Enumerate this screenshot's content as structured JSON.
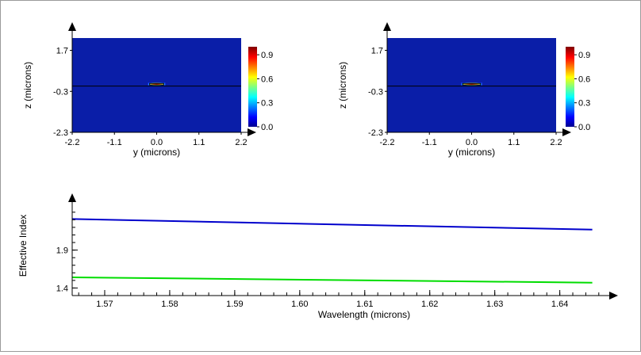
{
  "chart_data": [
    {
      "type": "heatmap",
      "xlabel": "y (microns)",
      "ylabel": "z (microns)",
      "xlim": [
        -2.2,
        2.2
      ],
      "ylim": [
        -2.3,
        2.3
      ],
      "x_ticks": [
        "-2.2",
        "-1.1",
        "0.0",
        "1.1",
        "2.2"
      ],
      "y_ticks": [
        "-2.3",
        "-0.3",
        "1.7"
      ],
      "colorbar_ticks": [
        "0.0",
        "0.3",
        "0.6",
        "0.9"
      ],
      "colorbar_range": [
        0,
        1
      ],
      "hotspot": {
        "y_center": 0.0,
        "z_center": 0.05,
        "width": 0.45,
        "height": 0.15
      },
      "grid": false
    },
    {
      "type": "heatmap",
      "xlabel": "y (microns)",
      "ylabel": "z (microns)",
      "xlim": [
        -2.2,
        2.2
      ],
      "ylim": [
        -2.3,
        2.3
      ],
      "x_ticks": [
        "-2.2",
        "-1.1",
        "0.0",
        "1.1",
        "2.2"
      ],
      "y_ticks": [
        "-2.3",
        "-0.3",
        "1.7"
      ],
      "colorbar_ticks": [
        "0.0",
        "0.3",
        "0.6",
        "0.9"
      ],
      "colorbar_range": [
        0,
        1
      ],
      "hotspot": {
        "y_center": 0.0,
        "z_center": 0.05,
        "width": 0.55,
        "height": 0.15
      },
      "grid": false
    },
    {
      "type": "line",
      "xlabel": "Wavelength (microns)",
      "ylabel": "Effective Index",
      "xlim": [
        1.565,
        1.647
      ],
      "ylim": [
        1.3,
        2.45
      ],
      "x_ticks": [
        "1.57",
        "1.58",
        "1.59",
        "1.60",
        "1.61",
        "1.62",
        "1.63",
        "1.64"
      ],
      "y_ticks": [
        "1.4",
        "1.9"
      ],
      "series": [
        {
          "color": "#0000cc",
          "x": [
            1.565,
            1.645
          ],
          "y": [
            2.31,
            2.17
          ]
        },
        {
          "color": "#00dd00",
          "x": [
            1.565,
            1.645
          ],
          "y": [
            1.54,
            1.47
          ]
        }
      ],
      "grid": false
    }
  ]
}
